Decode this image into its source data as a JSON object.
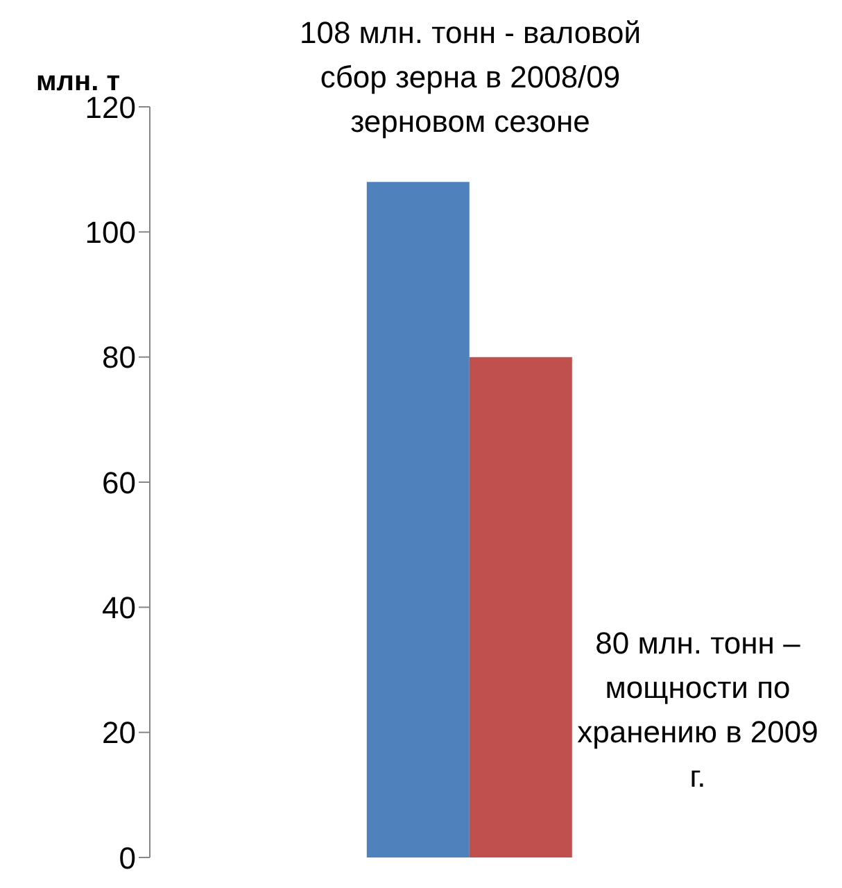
{
  "chart_data": {
    "type": "bar",
    "ylabel": "млн. т",
    "categories": [
      null
    ],
    "series": [
      {
        "color": "#4f81bd",
        "values": [
          108
        ]
      },
      {
        "color": "#c0504d",
        "values": [
          80
        ]
      }
    ],
    "ylim": [
      0,
      120
    ],
    "yticks": [
      0,
      20,
      40,
      60,
      80,
      100,
      120
    ],
    "grid": false,
    "legend": false,
    "annotations": [
      "108  млн. тонн - валовой сбор зерна в 2008/09 зерновом сезоне",
      "80 млн. тонн – мощности по хранению в 2009 г."
    ]
  }
}
